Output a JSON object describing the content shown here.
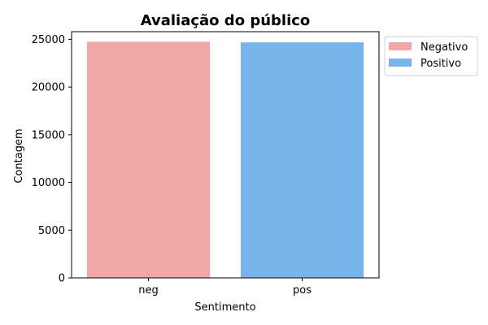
{
  "chart_data": {
    "type": "bar",
    "title": "Avaliação do público",
    "xlabel": "Sentimento",
    "ylabel": "Contagem",
    "categories": [
      "neg",
      "pos"
    ],
    "values": [
      24750,
      24680
    ],
    "colors": [
      "#f2a7a7",
      "#78b3ec"
    ],
    "ylim": [
      0,
      25800
    ],
    "yticks": [
      0,
      5000,
      10000,
      15000,
      20000,
      25000
    ],
    "legend": {
      "placement": "outside-top-right",
      "entries": [
        {
          "label": "Negativo",
          "color": "#f2a7a7"
        },
        {
          "label": "Positivo",
          "color": "#78b3ec"
        }
      ]
    },
    "grid": false
  }
}
